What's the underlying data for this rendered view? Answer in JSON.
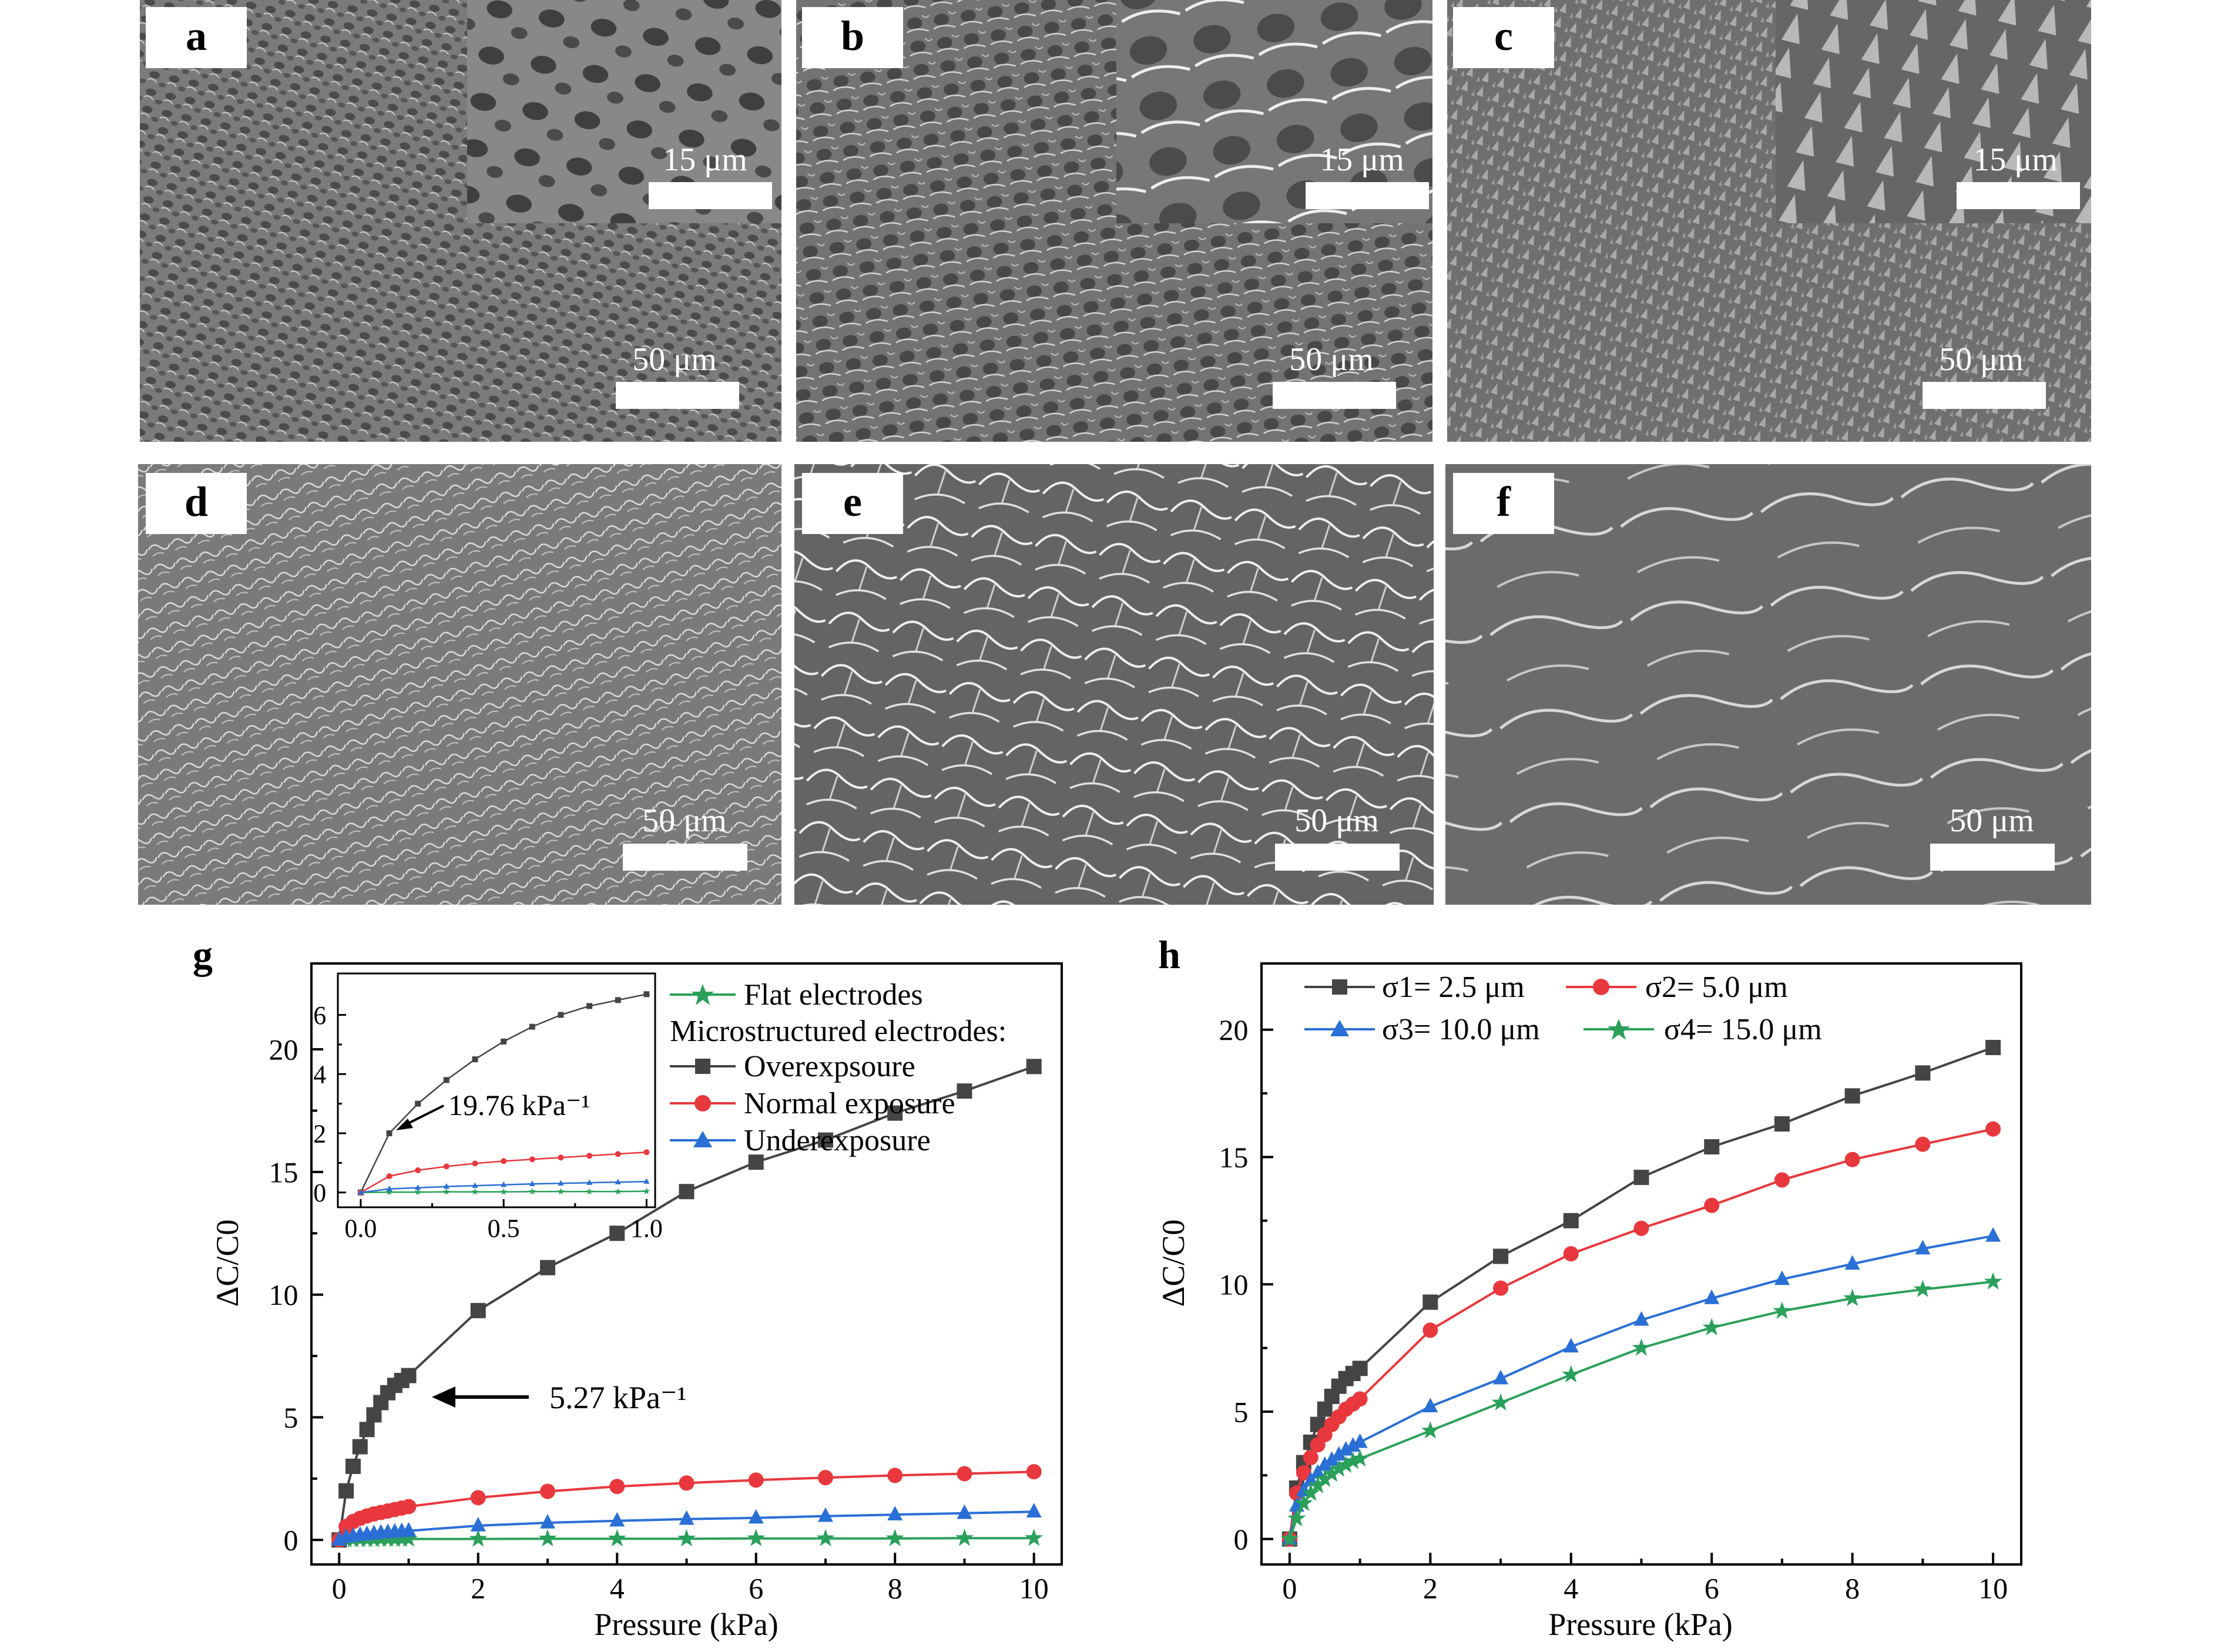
{
  "figure": {
    "panels": [
      {
        "letter": "a",
        "inset_scale": "15 μm",
        "scale": "50 μm"
      },
      {
        "letter": "b",
        "inset_scale": "15 μm",
        "scale": "50 μm"
      },
      {
        "letter": "c",
        "inset_scale": "15 μm",
        "scale": "50 μm"
      },
      {
        "letter": "d",
        "scale": "50 μm"
      },
      {
        "letter": "e",
        "scale": "50 μm"
      },
      {
        "letter": "f",
        "scale": "50 μm"
      }
    ]
  },
  "chart_data": [
    {
      "panel": "g",
      "type": "line",
      "xlabel": "Pressure (kPa)",
      "ylabel": "ΔC/C0",
      "xlim": [
        -0.4,
        10.4
      ],
      "ylim": [
        -1.0,
        23.5
      ],
      "xticks": [
        0,
        2,
        4,
        6,
        8,
        10
      ],
      "yticks": [
        0,
        5,
        10,
        15,
        20
      ],
      "legend_heading": "Microstructured electrodes:",
      "legend_position": "top-right",
      "annotation": "5.27 kPa⁻¹",
      "series": [
        {
          "name": "Flat electrodes",
          "color": "#2aa05a",
          "marker": "star",
          "x": [
            0,
            0.1,
            0.2,
            0.3,
            0.4,
            0.5,
            0.6,
            0.7,
            0.8,
            0.9,
            1,
            2,
            3,
            4,
            5,
            6,
            7,
            8,
            9,
            10
          ],
          "y": [
            0,
            0.01,
            0.01,
            0.02,
            0.02,
            0.02,
            0.03,
            0.03,
            0.03,
            0.03,
            0.04,
            0.04,
            0.05,
            0.05,
            0.05,
            0.06,
            0.06,
            0.06,
            0.07,
            0.07
          ]
        },
        {
          "name": "Overexpsoure",
          "color": "#444444",
          "marker": "square",
          "x": [
            0,
            0.1,
            0.2,
            0.3,
            0.4,
            0.5,
            0.6,
            0.7,
            0.8,
            0.9,
            1,
            2,
            3,
            4,
            5,
            6,
            7,
            8,
            9,
            10
          ],
          "y": [
            0,
            2.0,
            3.0,
            3.8,
            4.5,
            5.1,
            5.6,
            6.0,
            6.3,
            6.5,
            6.7,
            9.35,
            11.1,
            12.5,
            14.2,
            15.4,
            16.3,
            17.4,
            18.3,
            19.3
          ]
        },
        {
          "name": "Normal exposure",
          "color": "#e8383d",
          "marker": "circle",
          "x": [
            0,
            0.1,
            0.2,
            0.3,
            0.4,
            0.5,
            0.6,
            0.7,
            0.8,
            0.9,
            1,
            2,
            3,
            4,
            5,
            6,
            7,
            8,
            9,
            10
          ],
          "y": [
            0,
            0.55,
            0.75,
            0.88,
            0.98,
            1.06,
            1.12,
            1.18,
            1.24,
            1.3,
            1.36,
            1.72,
            1.98,
            2.18,
            2.32,
            2.44,
            2.54,
            2.63,
            2.7,
            2.78
          ]
        },
        {
          "name": "Underexposure",
          "color": "#2a6fd6",
          "marker": "triangle",
          "x": [
            0,
            0.1,
            0.2,
            0.3,
            0.4,
            0.5,
            0.6,
            0.7,
            0.8,
            0.9,
            1,
            2,
            3,
            4,
            5,
            6,
            7,
            8,
            9,
            10
          ],
          "y": [
            0,
            0.12,
            0.16,
            0.2,
            0.23,
            0.26,
            0.29,
            0.31,
            0.33,
            0.35,
            0.37,
            0.58,
            0.7,
            0.78,
            0.85,
            0.9,
            0.97,
            1.03,
            1.09,
            1.15
          ]
        }
      ],
      "inset": {
        "xlim": [
          -0.08,
          1.03
        ],
        "ylim": [
          -0.5,
          7.4
        ],
        "xticks": [
          0,
          0.5,
          1.0
        ],
        "xtick_labels": [
          "0.0",
          "0.5",
          "1.0"
        ],
        "yticks": [
          0,
          2,
          4,
          6
        ],
        "annotation": "19.76 kPa⁻¹"
      }
    },
    {
      "panel": "h",
      "type": "line",
      "xlabel": "Pressure (kPa)",
      "ylabel": "ΔC/C0",
      "xlim": [
        -0.4,
        10.4
      ],
      "ylim": [
        -1.0,
        22.6
      ],
      "xticks": [
        0,
        2,
        4,
        6,
        8,
        10
      ],
      "yticks": [
        0,
        5,
        10,
        15,
        20
      ],
      "legend_position": "top-left",
      "series": [
        {
          "name": "σ1= 2.5 μm",
          "color": "#444444",
          "marker": "square",
          "x": [
            0,
            0.1,
            0.2,
            0.3,
            0.4,
            0.5,
            0.6,
            0.7,
            0.8,
            0.9,
            1,
            2,
            3,
            4,
            5,
            6,
            7,
            8,
            9,
            10
          ],
          "y": [
            0,
            2.0,
            3.0,
            3.8,
            4.5,
            5.1,
            5.6,
            6.0,
            6.3,
            6.5,
            6.7,
            9.3,
            11.1,
            12.5,
            14.2,
            15.4,
            16.3,
            17.4,
            18.3,
            19.3
          ]
        },
        {
          "name": "σ2= 5.0 μm",
          "color": "#e8383d",
          "marker": "circle",
          "x": [
            0,
            0.1,
            0.2,
            0.3,
            0.4,
            0.5,
            0.6,
            0.7,
            0.8,
            0.9,
            1,
            2,
            3,
            4,
            5,
            6,
            7,
            8,
            9,
            10
          ],
          "y": [
            0,
            1.8,
            2.6,
            3.2,
            3.7,
            4.1,
            4.5,
            4.8,
            5.1,
            5.3,
            5.5,
            8.2,
            9.85,
            11.2,
            12.2,
            13.1,
            14.1,
            14.9,
            15.5,
            16.1
          ]
        },
        {
          "name": "σ3= 10.0 μm",
          "color": "#2a6fd6",
          "marker": "triangle",
          "x": [
            0,
            0.1,
            0.2,
            0.3,
            0.4,
            0.5,
            0.6,
            0.7,
            0.8,
            0.9,
            1,
            2,
            3,
            4,
            5,
            6,
            7,
            8,
            9,
            10
          ],
          "y": [
            0,
            1.3,
            1.9,
            2.3,
            2.6,
            2.9,
            3.1,
            3.3,
            3.5,
            3.65,
            3.8,
            5.2,
            6.3,
            7.55,
            8.6,
            9.45,
            10.2,
            10.8,
            11.4,
            11.9
          ]
        },
        {
          "name": "σ4= 15.0 μm",
          "color": "#2aa05a",
          "marker": "star",
          "x": [
            0,
            0.1,
            0.2,
            0.3,
            0.4,
            0.5,
            0.6,
            0.7,
            0.8,
            0.9,
            1,
            2,
            3,
            4,
            5,
            6,
            7,
            8,
            9,
            10
          ],
          "y": [
            0,
            0.8,
            1.4,
            1.8,
            2.1,
            2.35,
            2.55,
            2.75,
            2.9,
            3.05,
            3.15,
            4.25,
            5.35,
            6.45,
            7.5,
            8.3,
            8.95,
            9.45,
            9.8,
            10.1
          ]
        }
      ]
    }
  ]
}
